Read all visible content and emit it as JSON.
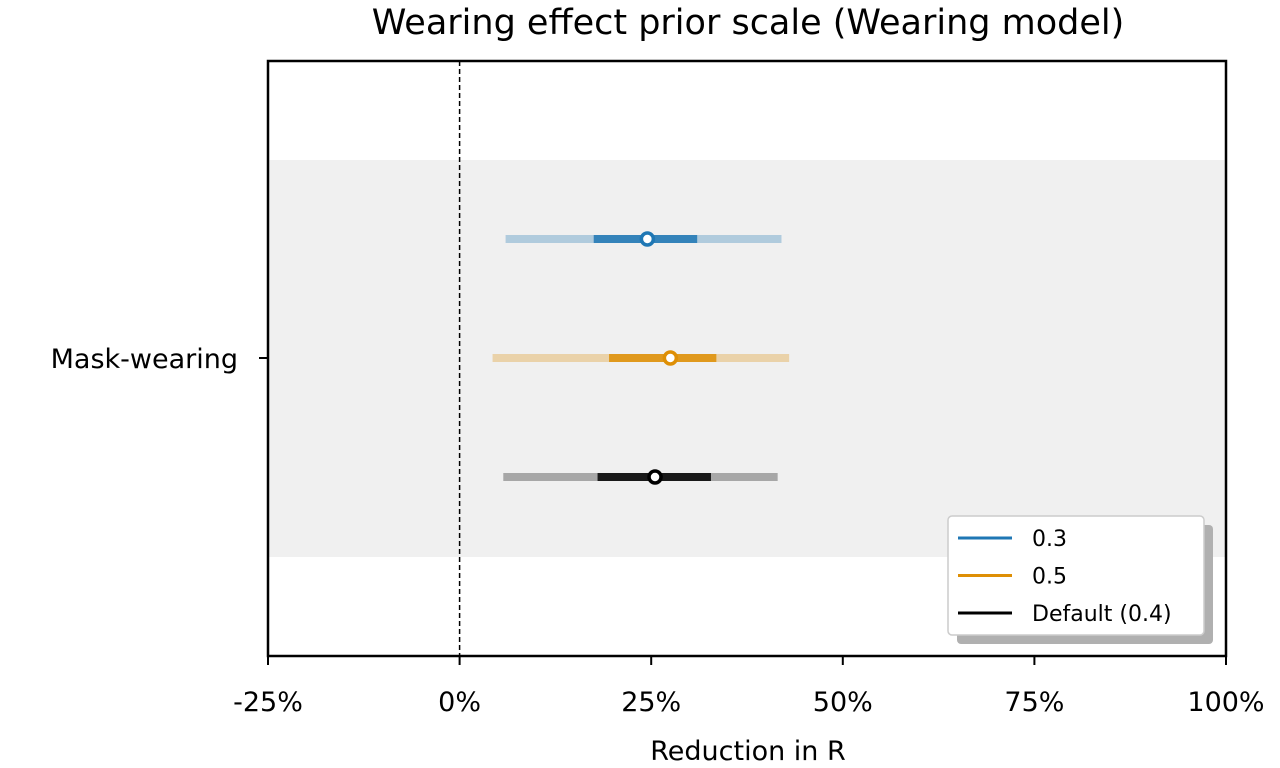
{
  "chart_data": {
    "type": "forest",
    "title": "Wearing effect prior scale (Wearing model)",
    "xlabel": "Reduction in R",
    "ylabel": "",
    "xlim": [
      -25,
      100
    ],
    "x_ticks": [
      -25,
      0,
      25,
      50,
      75,
      100
    ],
    "x_tick_labels": [
      "-25%",
      "0%",
      "25%",
      "50%",
      "75%",
      "100%"
    ],
    "x_unit": "%",
    "reference_line": 0,
    "categories": [
      "Mask-wearing"
    ],
    "series": [
      {
        "name": "0.3",
        "color": "#1f77b4",
        "median": 24.5,
        "ci50": [
          17.5,
          31
        ],
        "ci95": [
          6,
          42
        ]
      },
      {
        "name": "0.5",
        "color": "#de8f05",
        "median": 27.5,
        "ci50": [
          19.5,
          33.5
        ],
        "ci95": [
          4.3,
          43
        ]
      },
      {
        "name": "Default (0.4)",
        "color": "#000000",
        "median": 25.5,
        "ci50": [
          18,
          32.8
        ],
        "ci95": [
          5.7,
          41.5
        ]
      }
    ],
    "legend": {
      "location": "bottom-right",
      "entries": [
        "0.3",
        "0.5",
        "Default (0.4)"
      ]
    },
    "grid": false
  }
}
